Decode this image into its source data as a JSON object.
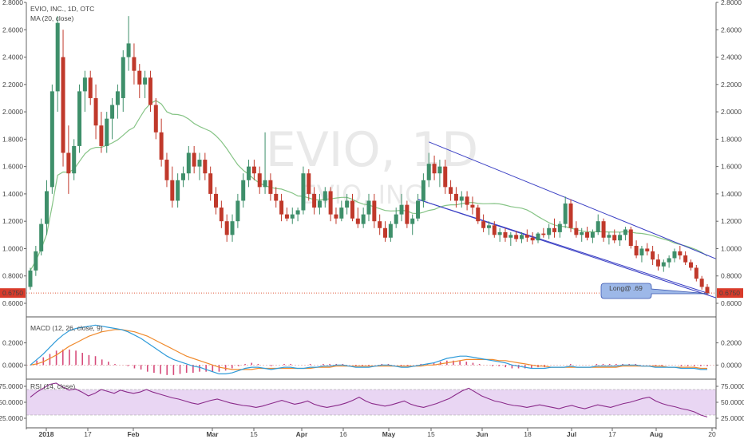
{
  "header": {
    "symbol_line": "EVIO, INC., 1D, OTC",
    "ma_label": "MA (20, close)"
  },
  "watermark": {
    "main": "EVIO, 1D",
    "sub": "EVIO, INC."
  },
  "annotation": {
    "text": "Long@ .69"
  },
  "price_marker": {
    "value": 0.675,
    "label": "0.6750"
  },
  "colors": {
    "up": "#3e8f6a",
    "down": "#c0392b",
    "ma": "#86c486",
    "channel": "#3a3fc4",
    "macd": "#2f9bd9",
    "signal": "#f08a2c",
    "rsi": "#8a2a8a",
    "rsi_band": "#e9d6f3",
    "annotation_fill": "#9db8e8"
  },
  "chart_data": [
    {
      "type": "candlestick",
      "title": "EVIO, INC., 1D, OTC",
      "ylim": [
        0.6,
        2.8
      ],
      "y_ticks": [
        0.6,
        0.8,
        1.0,
        1.2,
        1.4,
        1.6,
        1.8,
        2.0,
        2.2,
        2.4,
        2.6,
        2.8
      ],
      "y_tick_labels": [
        "0.6000",
        "0.8000",
        "1.0000",
        "1.2000",
        "1.4000",
        "1.6000",
        "1.8000",
        "2.0000",
        "2.2000",
        "2.4000",
        "2.6000",
        "2.8000"
      ],
      "x_labels": [
        "2018",
        "17",
        "Feb",
        "Mar",
        "15",
        "Apr",
        "16",
        "May",
        "15",
        "Jun",
        "18",
        "Jul",
        "17",
        "Aug",
        "20"
      ],
      "ohlc": [
        [
          0.72,
          0.86,
          0.7,
          0.84
        ],
        [
          0.84,
          1.02,
          0.8,
          0.98
        ],
        [
          0.98,
          1.22,
          0.95,
          1.18
        ],
        [
          1.18,
          1.5,
          1.1,
          1.42
        ],
        [
          1.45,
          2.2,
          1.4,
          2.15
        ],
        [
          2.15,
          2.7,
          2.0,
          2.65
        ],
        [
          2.4,
          2.6,
          1.6,
          1.7
        ],
        [
          1.7,
          1.9,
          1.4,
          1.55
        ],
        [
          1.55,
          1.8,
          1.5,
          1.75
        ],
        [
          1.75,
          2.2,
          1.7,
          2.15
        ],
        [
          2.15,
          2.3,
          2.0,
          2.25
        ],
        [
          2.25,
          2.3,
          2.05,
          2.1
        ],
        [
          2.1,
          2.2,
          1.8,
          1.9
        ],
        [
          1.9,
          2.0,
          1.7,
          1.75
        ],
        [
          1.75,
          2.0,
          1.7,
          1.95
        ],
        [
          1.95,
          2.1,
          1.8,
          2.05
        ],
        [
          2.05,
          2.2,
          1.95,
          2.15
        ],
        [
          2.1,
          2.45,
          2.0,
          2.4
        ],
        [
          2.4,
          2.7,
          2.3,
          2.5
        ],
        [
          2.4,
          2.5,
          2.2,
          2.3
        ],
        [
          2.3,
          2.35,
          2.1,
          2.2
        ],
        [
          2.2,
          2.3,
          2.1,
          2.25
        ],
        [
          2.25,
          2.3,
          2.0,
          2.05
        ],
        [
          2.05,
          2.1,
          1.8,
          1.85
        ],
        [
          1.85,
          1.95,
          1.6,
          1.65
        ],
        [
          1.65,
          1.7,
          1.45,
          1.5
        ],
        [
          1.5,
          1.6,
          1.3,
          1.35
        ],
        [
          1.35,
          1.55,
          1.3,
          1.5
        ],
        [
          1.5,
          1.6,
          1.45,
          1.55
        ],
        [
          1.55,
          1.75,
          1.5,
          1.7
        ],
        [
          1.7,
          1.75,
          1.55,
          1.6
        ],
        [
          1.6,
          1.7,
          1.5,
          1.65
        ],
        [
          1.65,
          1.7,
          1.5,
          1.55
        ],
        [
          1.55,
          1.6,
          1.35,
          1.4
        ],
        [
          1.4,
          1.45,
          1.25,
          1.3
        ],
        [
          1.3,
          1.35,
          1.15,
          1.2
        ],
        [
          1.2,
          1.25,
          1.05,
          1.1
        ],
        [
          1.1,
          1.25,
          1.05,
          1.2
        ],
        [
          1.2,
          1.4,
          1.15,
          1.35
        ],
        [
          1.35,
          1.55,
          1.3,
          1.5
        ],
        [
          1.5,
          1.65,
          1.45,
          1.6
        ],
        [
          1.6,
          1.65,
          1.5,
          1.55
        ],
        [
          1.55,
          1.6,
          1.4,
          1.45
        ],
        [
          1.45,
          1.85,
          1.4,
          1.5
        ],
        [
          1.5,
          1.55,
          1.35,
          1.4
        ],
        [
          1.4,
          1.45,
          1.3,
          1.35
        ],
        [
          1.35,
          1.4,
          1.2,
          1.25
        ],
        [
          1.25,
          1.3,
          1.2,
          1.22
        ],
        [
          1.22,
          1.3,
          1.18,
          1.25
        ],
        [
          1.25,
          1.3,
          1.2,
          1.28
        ],
        [
          1.28,
          1.6,
          1.25,
          1.55
        ],
        [
          1.55,
          1.58,
          1.35,
          1.4
        ],
        [
          1.4,
          1.45,
          1.25,
          1.3
        ],
        [
          1.3,
          1.4,
          1.25,
          1.35
        ],
        [
          1.35,
          1.45,
          1.3,
          1.42
        ],
        [
          1.42,
          1.45,
          1.2,
          1.25
        ],
        [
          1.25,
          1.3,
          1.18,
          1.22
        ],
        [
          1.22,
          1.35,
          1.2,
          1.3
        ],
        [
          1.3,
          1.4,
          1.25,
          1.35
        ],
        [
          1.35,
          1.4,
          1.2,
          1.22
        ],
        [
          1.22,
          1.3,
          1.15,
          1.18
        ],
        [
          1.18,
          1.3,
          1.15,
          1.25
        ],
        [
          1.25,
          1.4,
          1.2,
          1.35
        ],
        [
          1.35,
          1.4,
          1.15,
          1.2
        ],
        [
          1.2,
          1.25,
          1.1,
          1.15
        ],
        [
          1.15,
          1.2,
          1.05,
          1.08
        ],
        [
          1.08,
          1.2,
          1.05,
          1.18
        ],
        [
          1.18,
          1.3,
          1.15,
          1.25
        ],
        [
          1.25,
          1.4,
          1.2,
          1.32
        ],
        [
          1.32,
          1.35,
          1.15,
          1.18
        ],
        [
          1.18,
          1.25,
          1.1,
          1.22
        ],
        [
          1.22,
          1.4,
          1.2,
          1.35
        ],
        [
          1.35,
          1.55,
          1.3,
          1.5
        ],
        [
          1.5,
          1.7,
          1.45,
          1.62
        ],
        [
          1.62,
          1.68,
          1.5,
          1.55
        ],
        [
          1.55,
          1.65,
          1.45,
          1.6
        ],
        [
          1.6,
          1.65,
          1.4,
          1.45
        ],
        [
          1.45,
          1.5,
          1.35,
          1.4
        ],
        [
          1.4,
          1.45,
          1.3,
          1.35
        ],
        [
          1.35,
          1.42,
          1.3,
          1.38
        ],
        [
          1.38,
          1.42,
          1.28,
          1.32
        ],
        [
          1.32,
          1.38,
          1.25,
          1.3
        ],
        [
          1.3,
          1.32,
          1.18,
          1.2
        ],
        [
          1.2,
          1.25,
          1.12,
          1.15
        ],
        [
          1.15,
          1.2,
          1.1,
          1.17
        ],
        [
          1.17,
          1.2,
          1.08,
          1.1
        ],
        [
          1.1,
          1.15,
          1.05,
          1.12
        ],
        [
          1.12,
          1.15,
          1.05,
          1.08
        ],
        [
          1.08,
          1.12,
          1.02,
          1.1
        ],
        [
          1.1,
          1.13,
          1.05,
          1.07
        ],
        [
          1.07,
          1.12,
          1.04,
          1.1
        ],
        [
          1.1,
          1.14,
          1.05,
          1.08
        ],
        [
          1.08,
          1.12,
          1.03,
          1.06
        ],
        [
          1.06,
          1.12,
          1.04,
          1.11
        ],
        [
          1.11,
          1.15,
          1.08,
          1.1
        ],
        [
          1.1,
          1.18,
          1.07,
          1.15
        ],
        [
          1.15,
          1.22,
          1.08,
          1.12
        ],
        [
          1.12,
          1.2,
          1.08,
          1.18
        ],
        [
          1.18,
          1.38,
          1.15,
          1.33
        ],
        [
          1.33,
          1.36,
          1.12,
          1.15
        ],
        [
          1.15,
          1.2,
          1.08,
          1.1
        ],
        [
          1.1,
          1.15,
          1.05,
          1.12
        ],
        [
          1.12,
          1.16,
          1.06,
          1.08
        ],
        [
          1.08,
          1.14,
          1.04,
          1.12
        ],
        [
          1.12,
          1.25,
          1.1,
          1.2
        ],
        [
          1.2,
          1.22,
          1.05,
          1.08
        ],
        [
          1.08,
          1.12,
          1.03,
          1.1
        ],
        [
          1.1,
          1.14,
          1.04,
          1.06
        ],
        [
          1.06,
          1.12,
          1.02,
          1.1
        ],
        [
          1.1,
          1.16,
          1.06,
          1.14
        ],
        [
          1.14,
          1.16,
          1.0,
          1.02
        ],
        [
          1.02,
          1.06,
          0.93,
          0.95
        ],
        [
          0.95,
          1.02,
          0.9,
          1.0
        ],
        [
          1.0,
          1.04,
          0.95,
          0.98
        ],
        [
          0.98,
          1.02,
          0.88,
          0.92
        ],
        [
          0.92,
          0.96,
          0.84,
          0.87
        ],
        [
          0.87,
          0.92,
          0.83,
          0.9
        ],
        [
          0.9,
          0.95,
          0.86,
          0.93
        ],
        [
          0.93,
          1.0,
          0.9,
          0.98
        ],
        [
          0.98,
          1.02,
          0.92,
          0.95
        ],
        [
          0.95,
          0.98,
          0.88,
          0.9
        ],
        [
          0.9,
          0.92,
          0.84,
          0.86
        ],
        [
          0.86,
          0.88,
          0.76,
          0.78
        ],
        [
          0.78,
          0.8,
          0.7,
          0.72
        ],
        [
          0.72,
          0.74,
          0.66,
          0.675
        ]
      ]
    },
    {
      "type": "line",
      "title": "MACD (12, 26, close, 9)",
      "ylim": [
        -0.12,
        0.42
      ],
      "y_ticks": [
        0,
        0.2
      ],
      "y_tick_labels": [
        "0.0000",
        "0.2000"
      ],
      "series": [
        {
          "name": "MACD",
          "values": [
            0.0,
            0.05,
            0.1,
            0.16,
            0.22,
            0.27,
            0.31,
            0.33,
            0.34,
            0.35,
            0.36,
            0.35,
            0.34,
            0.33,
            0.32,
            0.3,
            0.27,
            0.24,
            0.2,
            0.16,
            0.12,
            0.08,
            0.05,
            0.03,
            0.01,
            -0.01,
            -0.02,
            -0.04,
            -0.06,
            -0.08,
            -0.08,
            -0.07,
            -0.05,
            -0.03,
            -0.02,
            -0.02,
            -0.03,
            -0.04,
            -0.03,
            -0.02,
            -0.02,
            -0.03,
            -0.03,
            -0.02,
            -0.02,
            -0.01,
            -0.01,
            0.0,
            0.0,
            -0.01,
            -0.02,
            -0.02,
            -0.02,
            -0.01,
            0.0,
            0.0,
            -0.01,
            -0.02,
            -0.02,
            -0.01,
            0.0,
            0.01,
            0.02,
            0.04,
            0.06,
            0.07,
            0.08,
            0.08,
            0.07,
            0.06,
            0.05,
            0.04,
            0.03,
            0.02,
            0.0,
            -0.01,
            -0.02,
            -0.03,
            -0.03,
            -0.03,
            -0.02,
            -0.02,
            -0.02,
            -0.01,
            -0.02,
            -0.02,
            -0.02,
            -0.01,
            -0.01,
            -0.01,
            -0.01,
            0.0,
            0.0,
            0.0,
            -0.01,
            -0.01,
            -0.02,
            -0.02,
            -0.02,
            -0.02,
            -0.03,
            -0.03,
            -0.03,
            -0.04,
            -0.04
          ]
        },
        {
          "name": "Signal",
          "values": [
            0.0,
            0.01,
            0.03,
            0.06,
            0.09,
            0.13,
            0.17,
            0.2,
            0.23,
            0.26,
            0.28,
            0.3,
            0.31,
            0.32,
            0.32,
            0.31,
            0.3,
            0.28,
            0.26,
            0.23,
            0.2,
            0.17,
            0.14,
            0.11,
            0.08,
            0.06,
            0.04,
            0.02,
            0.0,
            -0.02,
            -0.03,
            -0.04,
            -0.04,
            -0.04,
            -0.04,
            -0.03,
            -0.03,
            -0.03,
            -0.03,
            -0.03,
            -0.03,
            -0.03,
            -0.03,
            -0.03,
            -0.02,
            -0.02,
            -0.02,
            -0.01,
            -0.01,
            -0.01,
            -0.01,
            -0.01,
            -0.01,
            -0.01,
            -0.01,
            -0.01,
            -0.01,
            -0.01,
            -0.01,
            -0.01,
            -0.01,
            0.0,
            0.0,
            0.01,
            0.02,
            0.03,
            0.04,
            0.05,
            0.05,
            0.05,
            0.05,
            0.05,
            0.04,
            0.04,
            0.03,
            0.02,
            0.01,
            0.0,
            -0.01,
            -0.01,
            -0.02,
            -0.02,
            -0.02,
            -0.02,
            -0.02,
            -0.02,
            -0.02,
            -0.02,
            -0.02,
            -0.02,
            -0.02,
            -0.01,
            -0.01,
            -0.01,
            -0.01,
            -0.01,
            -0.01,
            -0.01,
            -0.02,
            -0.02,
            -0.02,
            -0.02,
            -0.02,
            -0.03,
            -0.03
          ]
        }
      ]
    },
    {
      "type": "line",
      "title": "RSI (14, close)",
      "ylim": [
        15,
        85
      ],
      "y_ticks": [
        25,
        50,
        75
      ],
      "y_tick_labels": [
        "25.0000",
        "50.0000",
        "75.0000"
      ],
      "band": [
        30,
        70
      ],
      "series": [
        {
          "name": "RSI",
          "values": [
            58,
            66,
            72,
            78,
            80,
            74,
            69,
            71,
            66,
            60,
            64,
            70,
            67,
            64,
            69,
            66,
            64,
            66,
            70,
            66,
            63,
            60,
            57,
            55,
            52,
            49,
            47,
            50,
            53,
            55,
            52,
            49,
            47,
            45,
            44,
            42,
            44,
            47,
            50,
            53,
            50,
            47,
            49,
            52,
            47,
            44,
            42,
            44,
            46,
            49,
            53,
            58,
            52,
            48,
            46,
            44,
            46,
            49,
            52,
            47,
            44,
            42,
            45,
            48,
            52,
            56,
            62,
            68,
            72,
            66,
            60,
            56,
            52,
            50,
            47,
            45,
            44,
            42,
            44,
            46,
            44,
            42,
            40,
            43,
            45,
            42,
            40,
            43,
            46,
            44,
            42,
            45,
            48,
            50,
            53,
            56,
            58,
            52,
            48,
            45,
            43,
            40,
            38,
            35,
            30,
            27
          ]
        }
      ]
    }
  ]
}
